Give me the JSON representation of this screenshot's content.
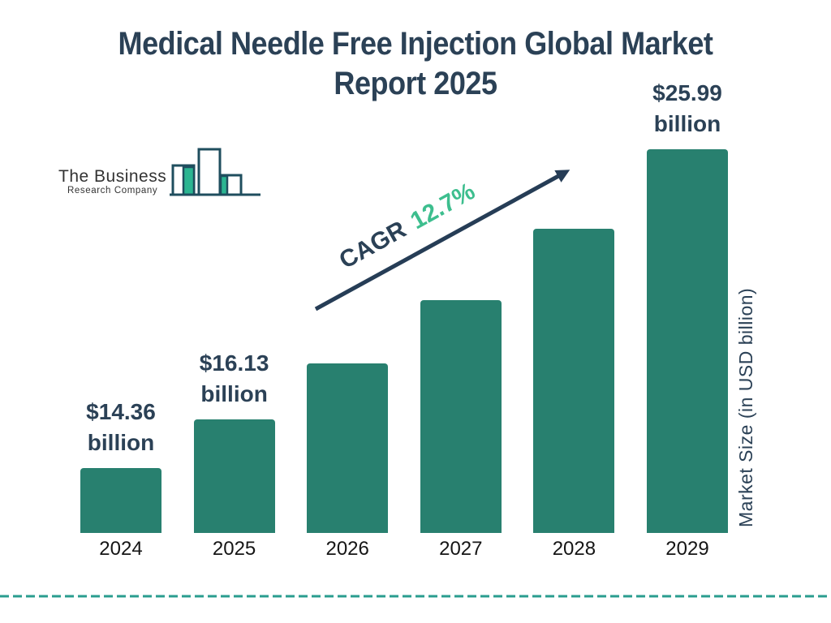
{
  "title": {
    "full": "Medical Needle Free Injection Global Market Report 2025",
    "line1": "Medical Needle Free Injection Global Market",
    "line2": "Report 2025"
  },
  "logo": {
    "name": "The Business",
    "subtitle": "Research Company"
  },
  "cagr": {
    "label": "CAGR",
    "value": "12.7%"
  },
  "axis": {
    "y_label": "Market Size (in USD billion)"
  },
  "chart_data": {
    "type": "bar",
    "title": "Medical Needle Free Injection Global Market Report 2025",
    "categories": [
      "2024",
      "2025",
      "2026",
      "2027",
      "2028",
      "2029"
    ],
    "values": [
      14.36,
      16.13,
      18.18,
      20.49,
      23.09,
      25.99
    ],
    "bar_value_labels": [
      {
        "category": "2024",
        "line1": "$14.36",
        "line2": "billion"
      },
      {
        "category": "2025",
        "line1": "$16.13",
        "line2": "billion"
      },
      {
        "category": "2029",
        "line1": "$25.99",
        "line2": "billion"
      }
    ],
    "annotation": "CAGR 12.7%",
    "cagr_percent": 12.7,
    "xlabel": "",
    "ylabel": "Market Size (in USD billion)",
    "ylim": [
      12,
      26.6
    ],
    "grid": false,
    "legend": false,
    "bar_color": "#28806f"
  },
  "colors": {
    "bar": "#28806f",
    "navy": "#2b4156",
    "arrow": "#263d56",
    "cagr_green": "#3dbe8e",
    "logo_green": "#2bb591",
    "logo_outline": "#1f4e5e",
    "dashed_divider": "#2a9d8f",
    "year_label": "#151515"
  }
}
